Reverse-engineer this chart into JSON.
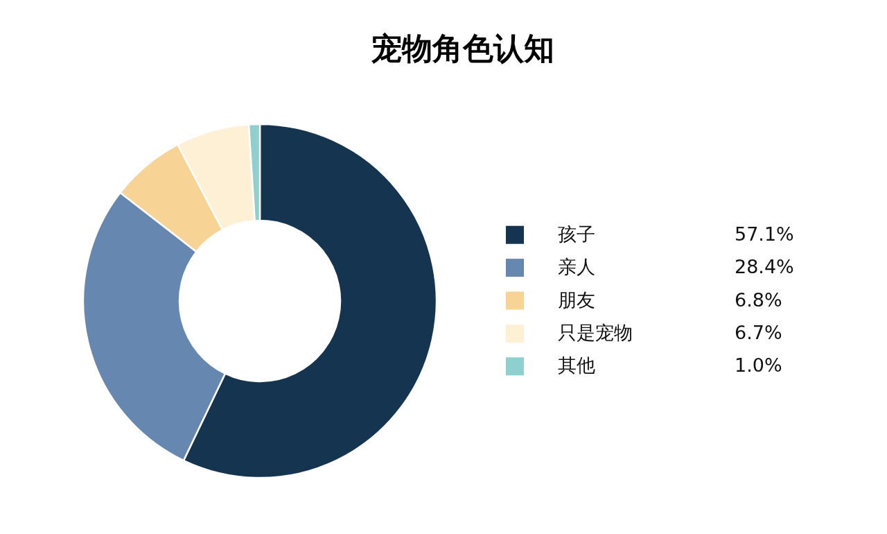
{
  "chart_data": {
    "type": "donut",
    "title": "宠物角色认知",
    "categories": [
      "孩子",
      "亲人",
      "朋友",
      "只是宠物",
      "其他"
    ],
    "values": [
      57.1,
      28.4,
      6.8,
      6.7,
      1.0
    ],
    "colors": [
      "#14344f",
      "#6687b0",
      "#f7d396",
      "#fdf0d5",
      "#8ecfcf"
    ],
    "value_labels": [
      "57.1%",
      "28.4%",
      "6.8%",
      "6.7%",
      "1.0%"
    ],
    "legend": "right"
  }
}
